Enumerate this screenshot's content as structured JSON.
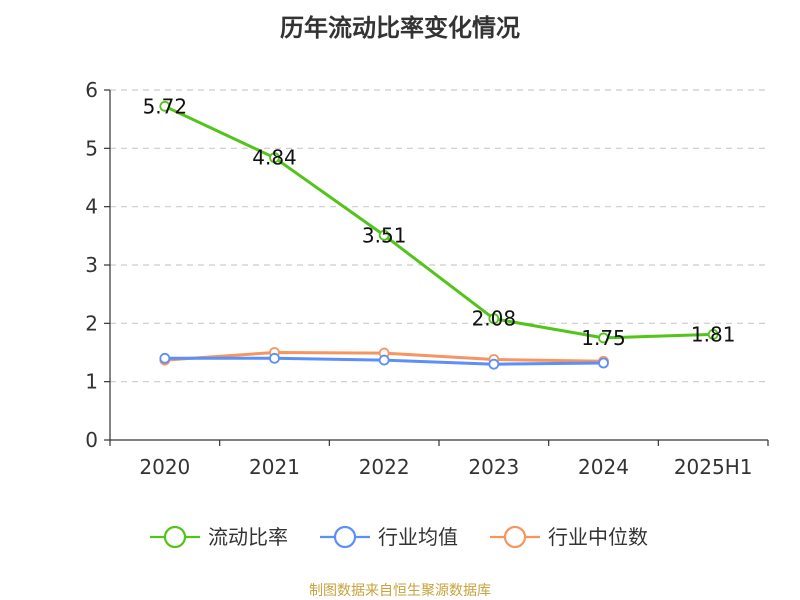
{
  "chart_data": {
    "type": "line",
    "title": "历年流动比率变化情况",
    "categories": [
      "2020",
      "2021",
      "2022",
      "2023",
      "2024",
      "2025H1"
    ],
    "ylim": [
      0,
      6
    ],
    "yticks": [
      0,
      1,
      2,
      3,
      4,
      5,
      6
    ],
    "grid": true,
    "legend_position": "bottom",
    "series": [
      {
        "name": "流动比率",
        "color": "#52c41a",
        "values": [
          5.72,
          4.84,
          3.51,
          2.08,
          1.75,
          1.81
        ],
        "labels": [
          "5.72",
          "4.84",
          "3.51",
          "2.08",
          "1.75",
          "1.81"
        ]
      },
      {
        "name": "行业均值",
        "color": "#5b8ff9",
        "values": [
          1.4,
          1.4,
          1.37,
          1.3,
          1.32,
          null
        ]
      },
      {
        "name": "行业中位数",
        "color": "#f6955f",
        "values": [
          1.37,
          1.5,
          1.49,
          1.38,
          1.35,
          null
        ]
      }
    ]
  },
  "source_note": "制图数据来自恒生聚源数据库"
}
